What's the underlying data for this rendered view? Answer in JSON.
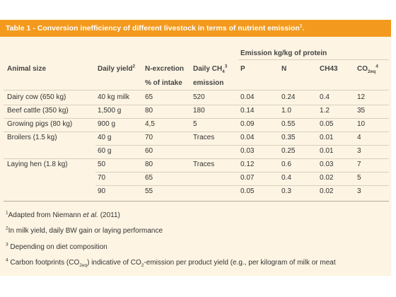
{
  "title": [
    {
      "text": "Table 1 - Conversion inefficiency of different livestock in terms of nutrient emission"
    },
    {
      "sup": "1"
    },
    {
      "text": "."
    }
  ],
  "table": {
    "group_header": "Emission kg/kg of protein",
    "columns": [
      [
        {
          "text": "Animal size"
        }
      ],
      [
        {
          "text": "Daily yield"
        },
        {
          "sup": "2"
        }
      ],
      [
        {
          "text": "N-excretion"
        }
      ],
      [
        {
          "text": "Daily CH"
        },
        {
          "sub": "4"
        },
        {
          "sup": "3"
        }
      ],
      [
        {
          "text": "P"
        }
      ],
      [
        {
          "text": "N"
        }
      ],
      [
        {
          "text": "CH43"
        }
      ],
      [
        {
          "text": "CO"
        },
        {
          "sub": "2eq"
        },
        {
          "sup": "4"
        }
      ]
    ],
    "subheaders": [
      null,
      null,
      "% of intake",
      "emission",
      null,
      null,
      null,
      null
    ],
    "rows": [
      [
        "Dairy cow (650 kg)",
        "40 kg milk",
        "65",
        "520",
        "0.04",
        "0.24",
        "0.4",
        "12"
      ],
      [
        "Beef cattle (350 kg)",
        "1,500 g",
        "80",
        "180",
        "0.14",
        "1.0",
        "1.2",
        "35"
      ],
      [
        "Growing pigs (80 kg)",
        "900 g",
        "4,5",
        "5",
        "0.09",
        "0.55",
        "0.05",
        "10"
      ],
      [
        "Broilers (1.5 kg)",
        "40 g",
        "70",
        "Traces",
        "0.04",
        "0.35",
        "0.01",
        "4"
      ],
      [
        null,
        "60 g",
        "60",
        null,
        "0.03",
        "0.25",
        "0.01",
        "3"
      ],
      [
        "Laying hen (1.8 kg)",
        "50",
        "80",
        "Traces",
        "0.12",
        "0.6",
        "0.03",
        "7"
      ],
      [
        null,
        "70",
        "65",
        null,
        "0.07",
        "0.4",
        "0.02",
        "5"
      ],
      [
        null,
        "90",
        "55",
        null,
        "0.05",
        "0.3",
        "0.02",
        "3"
      ]
    ]
  },
  "footnotes": [
    [
      {
        "sup": "1"
      },
      {
        "text": "Adapted from Niemann "
      },
      {
        "italic": "et al."
      },
      {
        "text": " (2011)"
      }
    ],
    [
      {
        "sup": "2"
      },
      {
        "text": "In milk yield, daily BW gain or laying performance"
      }
    ],
    [
      {
        "sup": "3"
      },
      {
        "text": " Depending on diet composition"
      }
    ],
    [
      {
        "sup": "4"
      },
      {
        "text": " Carbon footprints (CO"
      },
      {
        "sub": "2eq"
      },
      {
        "text": ") indicative of CO"
      },
      {
        "sub": "2"
      },
      {
        "text": "-emission per product yield (e.g., per kilogram of milk or meat"
      }
    ]
  ]
}
